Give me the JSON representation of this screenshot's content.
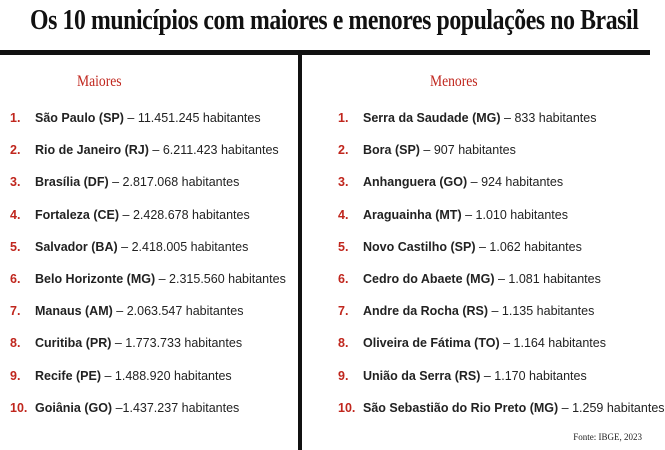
{
  "title": "Os 10 municípios com maiores e menores populações no Brasil",
  "colors": {
    "accent": "#c0261d",
    "text": "#222222",
    "rule": "#111111"
  },
  "maiores": {
    "heading": "Maiores",
    "items": [
      {
        "rank": "1.",
        "name": "São Paulo (SP)",
        "sep": " – ",
        "population": "11.451.245 habitantes"
      },
      {
        "rank": "2.",
        "name": "Rio de Janeiro (RJ)",
        "sep": " – ",
        "population": "6.211.423 habitantes"
      },
      {
        "rank": "3.",
        "name": "Brasília (DF)",
        "sep": " – ",
        "population": "2.817.068 habitantes"
      },
      {
        "rank": "4.",
        "name": "Fortaleza (CE)",
        "sep": " – ",
        "population": "2.428.678 habitantes"
      },
      {
        "rank": "5.",
        "name": "Salvador (BA)",
        "sep": " – ",
        "population": "2.418.005 habitantes"
      },
      {
        "rank": "6.",
        "name": "Belo Horizonte (MG)",
        "sep": " – ",
        "population": "2.315.560 habitantes"
      },
      {
        "rank": "7.",
        "name": "Manaus (AM)",
        "sep": " – ",
        "population": "2.063.547 habitantes"
      },
      {
        "rank": "8.",
        "name": "Curitiba (PR)",
        "sep": " – ",
        "population": "1.773.733 habitantes"
      },
      {
        "rank": "9.",
        "name": "Recife (PE)",
        "sep": " – ",
        "population": "1.488.920 habitantes"
      },
      {
        "rank": "10.",
        "name": "Goiânia (GO)",
        "sep": " –",
        "population": "1.437.237 habitantes"
      }
    ]
  },
  "menores": {
    "heading": "Menores",
    "items": [
      {
        "rank": "1.",
        "name": "Serra da Saudade (MG)",
        "sep": " – ",
        "population": "833 habitantes"
      },
      {
        "rank": "2.",
        "name": "Bora (SP)",
        "sep": " – ",
        "population": "907 habitantes"
      },
      {
        "rank": "3.",
        "name": "Anhanguera (GO)",
        "sep": " – ",
        "population": "924 habitantes"
      },
      {
        "rank": "4.",
        "name": "Araguainha (MT)",
        "sep": " – ",
        "population": "1.010 habitantes"
      },
      {
        "rank": "5.",
        "name": "Novo Castilho (SP)",
        "sep": " – ",
        "population": "1.062 habitantes"
      },
      {
        "rank": "6.",
        "name": "Cedro do Abaete (MG)",
        "sep": " – ",
        "population": "1.081 habitantes"
      },
      {
        "rank": "7.",
        "name": "Andre da Rocha (RS)",
        "sep": " – ",
        "population": "1.135 habitantes"
      },
      {
        "rank": "8.",
        "name": "Oliveira de Fátima (TO)",
        "sep": " – ",
        "population": "1.164 habitantes"
      },
      {
        "rank": "9.",
        "name": "União da Serra (RS)",
        "sep": " – ",
        "population": "1.170 habitantes"
      },
      {
        "rank": "10.",
        "name": "São Sebastião do Rio Preto (MG)",
        "sep": " – ",
        "population": "1.259 habitantes"
      }
    ]
  },
  "source": "Fonte: IBGE, 2023"
}
